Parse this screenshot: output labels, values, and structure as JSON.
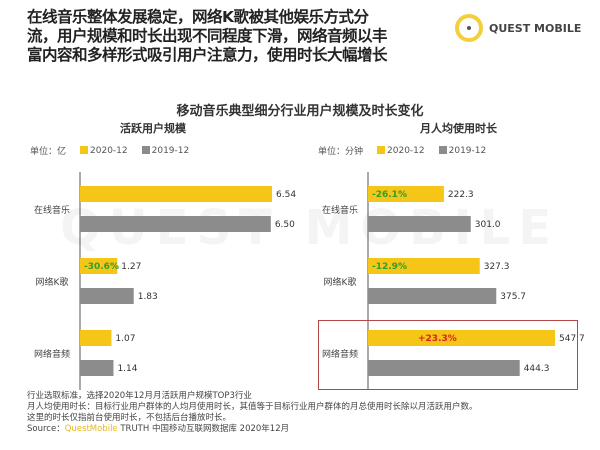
{
  "headline": "在线音乐整体发展稳定，网络K歌被其他娱乐方式分流，用户规模和时长出现不同程度下滑，网络音频以丰富内容和多样形式吸引用户注意力，使用时长大幅增长",
  "logo_text": "QUEST MOBILE",
  "watermark": "QUEST MOBILE",
  "colors": {
    "y2020": "#f5c518",
    "y2019": "#8c8c8c",
    "up": "#e0201e",
    "down": "#2e9e2e"
  },
  "chart_data": [
    {
      "type": "bar",
      "orientation": "horizontal",
      "title": "移动音乐典型细分行业用户规模及时长变化",
      "subtitle": "活跃用户规模",
      "unit": "单位：亿",
      "categories": [
        "在线音乐",
        "网络K歌",
        "网络音频"
      ],
      "series": [
        {
          "name": "2020-12",
          "values": [
            6.54,
            1.27,
            1.07
          ]
        },
        {
          "name": "2019-12",
          "values": [
            6.5,
            1.83,
            1.14
          ]
        }
      ],
      "annotations": [
        "",
        "-30.6%",
        ""
      ],
      "xlim": [
        0,
        6.54
      ]
    },
    {
      "type": "bar",
      "orientation": "horizontal",
      "subtitle": "月人均使用时长",
      "unit": "单位：分钟",
      "categories": [
        "在线音乐",
        "网络K歌",
        "网络音频"
      ],
      "series": [
        {
          "name": "2020-12",
          "values": [
            222.3,
            327.3,
            547.7
          ]
        },
        {
          "name": "2019-12",
          "values": [
            301.0,
            375.7,
            444.3
          ]
        }
      ],
      "annotations": [
        "-26.1%",
        "-12.9%",
        "+23.3%"
      ],
      "xlim": [
        0,
        547.7
      ]
    }
  ],
  "notes": [
    "行业选取标准，选择2020年12月月活跃用户规模TOP3行业",
    "月人均使用时长：目标行业用户群体的人均月使用时长，其值等于目标行业用户群体的月总使用时长除以月活跃用户数。",
    "这里的时长仅指前台使用时长，不包括后台播放时长。"
  ],
  "source": {
    "label": "Source：",
    "brand": "QuestMobile",
    "rest": " TRUTH 中国移动互联网数据库 2020年12月"
  }
}
